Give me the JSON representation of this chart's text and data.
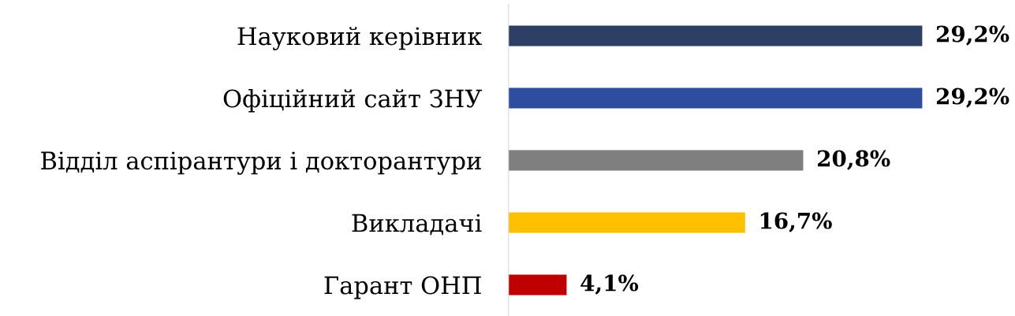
{
  "chart_data": {
    "type": "bar",
    "orientation": "horizontal",
    "categories": [
      "Науковий керівник",
      "Офіційний сайт ЗНУ",
      "Відділ аспірантури і докторантури",
      "Викладачі",
      "Гарант ОНП"
    ],
    "values": [
      29.2,
      29.2,
      20.8,
      16.7,
      4.1
    ],
    "colors": [
      "#2e3f66",
      "#2e4d9e",
      "#7f7f7f",
      "#ffc000",
      "#c00000"
    ],
    "value_labels": [
      "29,2%",
      "29,2%",
      "20,8%",
      "16,7%",
      "4,1%"
    ],
    "tick_labels": "y",
    "grid": false,
    "legend": false
  }
}
